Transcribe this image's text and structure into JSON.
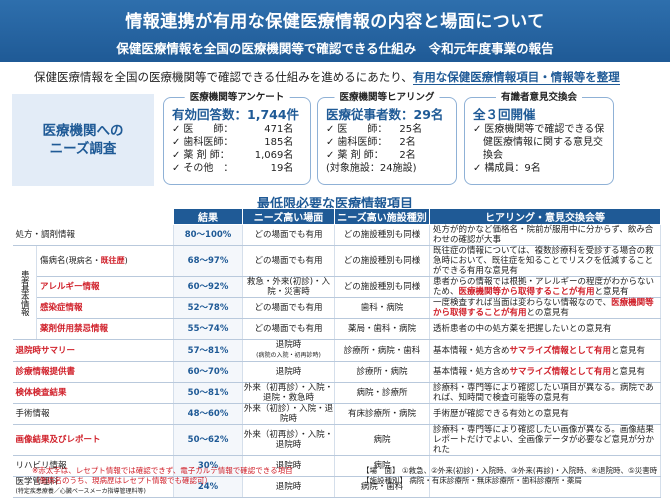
{
  "title": {
    "main": "情報連携が有用な保健医療情報の内容と場面について",
    "sub": "保健医療情報を全国の医療機関等で確認できる仕組み　令和元年度事業の報告"
  },
  "intro": {
    "text": "保健医療情報を全国の医療機関等で確認できる仕組みを進めるにあたり、",
    "highlight": "有用な保健医療情報項目・情報等を整理"
  },
  "needs_label": "医療機関への\nニーズ調査",
  "survey": {
    "head": "医療機関等アンケート",
    "big": "有効回答数：1,744件",
    "items": [
      {
        "label": "医　　師：",
        "value": "471名"
      },
      {
        "label": "歯科医師：",
        "value": "185名"
      },
      {
        "label": "薬 剤 師：",
        "value": "1,069名"
      },
      {
        "label": "その他　：",
        "value": "19名"
      }
    ]
  },
  "hearing": {
    "head": "医療機関等ヒアリング",
    "big": "医療従事者数：29名",
    "items": [
      {
        "label": "医　　師：",
        "value": "25名"
      },
      {
        "label": "歯科医師：",
        "value": "2名"
      },
      {
        "label": "薬 剤 師：",
        "value": "2名"
      }
    ],
    "note": "(対象施設：24施設)"
  },
  "expert": {
    "head": "有識者意見交換会",
    "big": "全３回開催",
    "items": [
      "医療機関等で確認できる保健医療情報に関する意見交換会",
      "構成員：9名"
    ]
  },
  "section_title": "最低限必要な医療情報項目",
  "table": {
    "headers": [
      "結果",
      "ニーズ高い場面",
      "ニーズ高い施設種別",
      "ヒアリング・意見交換会等"
    ],
    "group_label": "患者基本情報",
    "rows": [
      {
        "label": "処方・調剤情報",
        "pct": "80〜100%",
        "scene": "どの場面でも有用",
        "facility": "どの施設種別も同様",
        "op": "処方が的かなど価格名・院前が服用中に分からず、飲み合わせの確認が大事"
      },
      {
        "label": "傷病名",
        "label_small": "(現病名・",
        "label_red": "既往歴",
        "label_end": ")",
        "pct": "68〜97%",
        "scene": "どの場面でも有用",
        "facility": "どの施設種別も同様",
        "op": "既往症の情報については、複数診療科を受診する場合の救急時において、既往症を知ることでリスクを低減することができる有用な意見有"
      },
      {
        "label": "アレルギー情報",
        "pct": "60〜92%",
        "scene": "救急・外来(初診)・入院・災害時",
        "facility": "どの施設種別も同様",
        "op": "患者からの情報では根拠・アレルギーの程度がわからないため、",
        "op_bold": "医療機関等から取得することが有用",
        "op_end": "と意見有"
      },
      {
        "label": "感染症情報",
        "pct": "52〜78%",
        "scene": "どの場面でも有用",
        "facility": "歯科・病院",
        "op": "一度検査すれば当面は変わらない情報なので、",
        "op_bold": "医療機関等から取得することが有用",
        "op_end": "との意見有"
      },
      {
        "label": "薬剤併用禁忌情報",
        "pct": "55〜74%",
        "scene": "どの場面でも有用",
        "facility": "薬局・歯科・病院",
        "op": "透析患者の中の処方薬を把握したいとの意見有"
      },
      {
        "label": "退院時サマリー",
        "pct": "57〜81%",
        "scene": "退院時",
        "scene_small": "(病院の入院・初再診時)",
        "facility": "診療所・病院・歯科",
        "op": "基本情報・処方含め",
        "op_bold": "サマライズ情報として有用",
        "op_end": "と意見有"
      },
      {
        "label": "診療情報提供書",
        "pct": "60〜70%",
        "scene": "退院時",
        "facility": "診療所・病院",
        "op": "基本情報・処方含め",
        "op_bold": "サマライズ情報として有用",
        "op_end": "と意見有"
      },
      {
        "label": "検体検査結果",
        "pct": "50〜81%",
        "scene": "外来（初再診）・入院・退院・救急時",
        "facility": "病院・診療所",
        "op": "診療科・専門等により確認したい項目が異なる。病院であれば、知時間で検査可能等の意見有"
      },
      {
        "label": "手術情報",
        "pct": "48〜60%",
        "scene": "外来（初診）・入院・退院時",
        "facility": "有床診療所・病院",
        "op": "手術歴が確認できる有効との意見有"
      },
      {
        "label": "画像結果及びレポート",
        "pct": "50〜62%",
        "scene": "外来（初再診）・入院・退院時",
        "facility": "病院",
        "op": "診療科・専門等により確認したい画像が異なる。画像結果レポートだけでよい、全画像データが必要など意見が分かれた"
      },
      {
        "label": "リハビリ情報",
        "pct": "30%",
        "scene": "退院時",
        "facility": "病院",
        "op": ""
      },
      {
        "label": "医学管理料",
        "label_small": "(特定疾患療養／心臓ペースメーカ指導管理料等)",
        "pct": "24%",
        "scene": "退院時",
        "facility": "病院・歯科",
        "op": ""
      }
    ]
  },
  "footnote_left": [
    "※赤太字は、レセプト情報では確認できず、電子カルテ情報で確認できる項目",
    "（傷病名のうち、現病歴はレセプト情報でも確認可）"
  ],
  "footnote_right": [
    "【場　面】 ①救急、②外来(初診)・入院時、③外来(再診)・入院時、④退院時、⑤災害時",
    "【施設種別】 病院・有床診療所・無床診療所・歯科診療所・薬局"
  ],
  "colors": {
    "brand": "#1f5a96",
    "accent_red": "#d0202a",
    "panel": "#e3ecf7"
  }
}
